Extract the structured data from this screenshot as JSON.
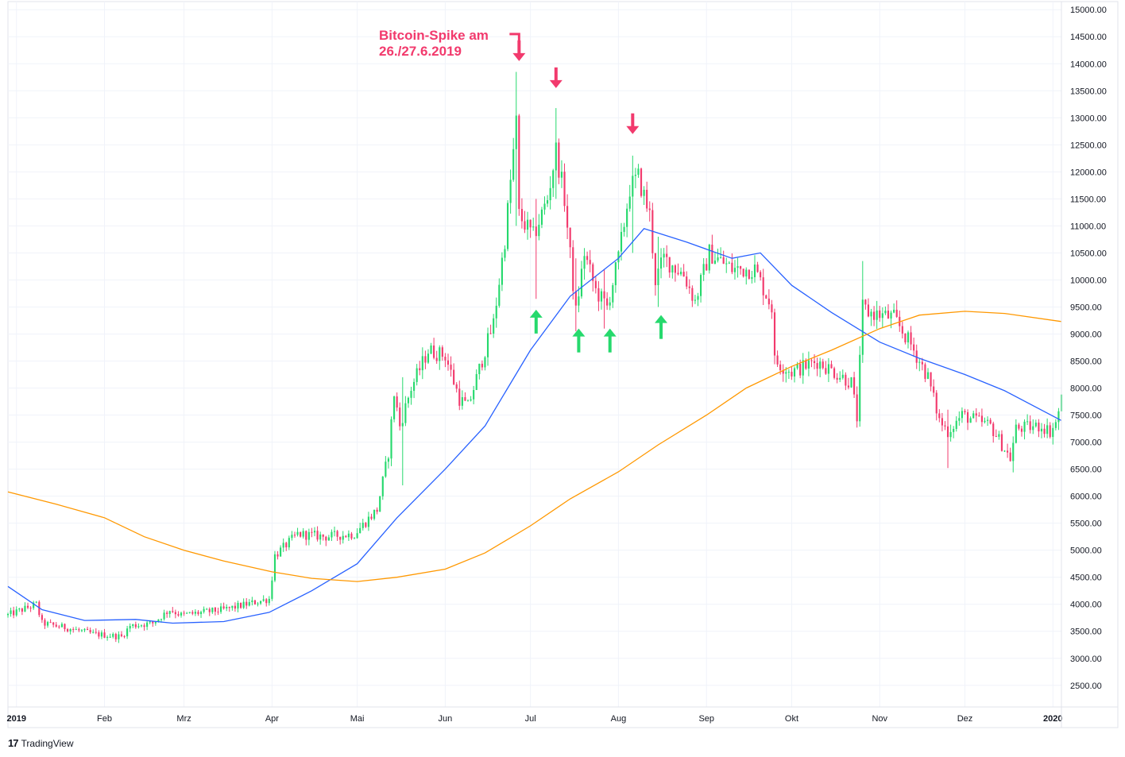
{
  "chart_data": {
    "type": "candlestick",
    "title": "",
    "annotation": [
      "Bitcoin-Spike am",
      "26./27.6.2019"
    ],
    "x_ticks": [
      {
        "label": "2019",
        "date": "2019-01-01",
        "bold": true
      },
      {
        "label": "Feb",
        "date": "2019-02-01",
        "bold": false
      },
      {
        "label": "Mrz",
        "date": "2019-03-01",
        "bold": false
      },
      {
        "label": "Apr",
        "date": "2019-04-01",
        "bold": false
      },
      {
        "label": "Mai",
        "date": "2019-05-01",
        "bold": false
      },
      {
        "label": "Jun",
        "date": "2019-06-01",
        "bold": false
      },
      {
        "label": "Jul",
        "date": "2019-07-01",
        "bold": false
      },
      {
        "label": "Aug",
        "date": "2019-08-01",
        "bold": false
      },
      {
        "label": "Sep",
        "date": "2019-09-01",
        "bold": false
      },
      {
        "label": "Okt",
        "date": "2019-10-01",
        "bold": false
      },
      {
        "label": "Nov",
        "date": "2019-11-01",
        "bold": false
      },
      {
        "label": "Dez",
        "date": "2019-12-01",
        "bold": false
      },
      {
        "label": "2020",
        "date": "2020-01-01",
        "bold": true
      }
    ],
    "y_ticks": [
      "15000.00",
      "14500.00",
      "14000.00",
      "13500.00",
      "13000.00",
      "12500.00",
      "12000.00",
      "11500.00",
      "11000.00",
      "10500.00",
      "10000.00",
      "9500.00",
      "9000.00",
      "8500.00",
      "8000.00",
      "7500.00",
      "7000.00",
      "6500.00",
      "6000.00",
      "5500.00",
      "5000.00",
      "4500.00",
      "4000.00",
      "3500.00",
      "3000.00",
      "2500.00"
    ],
    "ylim": [
      2100,
      15150
    ],
    "xlim": [
      "2018-12-29",
      "2020-01-04"
    ],
    "up_color": "#26d96d",
    "down_color": "#f23a6d",
    "close_path": [
      [
        "2018-12-29",
        3800
      ],
      [
        "2019-01-08",
        4000
      ],
      [
        "2019-01-10",
        3650
      ],
      [
        "2019-01-20",
        3550
      ],
      [
        "2019-01-28",
        3450
      ],
      [
        "2019-02-07",
        3400
      ],
      [
        "2019-02-10",
        3600
      ],
      [
        "2019-02-18",
        3650
      ],
      [
        "2019-02-24",
        3900
      ],
      [
        "2019-02-28",
        3800
      ],
      [
        "2019-03-15",
        3900
      ],
      [
        "2019-03-31",
        4100
      ],
      [
        "2019-04-02",
        4900
      ],
      [
        "2019-04-10",
        5300
      ],
      [
        "2019-04-20",
        5250
      ],
      [
        "2019-04-30",
        5300
      ],
      [
        "2019-05-08",
        5750
      ],
      [
        "2019-05-12",
        6800
      ],
      [
        "2019-05-14",
        7900
      ],
      [
        "2019-05-16",
        7300
      ],
      [
        "2019-05-20",
        8000
      ],
      [
        "2019-05-26",
        8700
      ],
      [
        "2019-06-01",
        8600
      ],
      [
        "2019-06-06",
        7800
      ],
      [
        "2019-06-09",
        7650
      ],
      [
        "2019-06-15",
        8700
      ],
      [
        "2019-06-18",
        9200
      ],
      [
        "2019-06-22",
        10750
      ],
      [
        "2019-06-26",
        12900
      ],
      [
        "2019-06-27",
        11200
      ],
      [
        "2019-07-02",
        10800
      ],
      [
        "2019-07-07",
        11500
      ],
      [
        "2019-07-10",
        12400
      ],
      [
        "2019-07-13",
        11500
      ],
      [
        "2019-07-17",
        9400
      ],
      [
        "2019-07-20",
        10500
      ],
      [
        "2019-07-24",
        9800
      ],
      [
        "2019-07-28",
        9500
      ],
      [
        "2019-08-01",
        10400
      ],
      [
        "2019-08-05",
        11700
      ],
      [
        "2019-08-08",
        11900
      ],
      [
        "2019-08-12",
        11200
      ],
      [
        "2019-08-14",
        10000
      ],
      [
        "2019-08-17",
        10400
      ],
      [
        "2019-08-24",
        10100
      ],
      [
        "2019-08-28",
        9600
      ],
      [
        "2019-09-02",
        10500
      ],
      [
        "2019-09-10",
        10200
      ],
      [
        "2019-09-18",
        10200
      ],
      [
        "2019-09-24",
        9500
      ],
      [
        "2019-09-25",
        8500
      ],
      [
        "2019-10-01",
        8300
      ],
      [
        "2019-10-10",
        8500
      ],
      [
        "2019-10-22",
        8100
      ],
      [
        "2019-10-24",
        7450
      ],
      [
        "2019-10-26",
        9500
      ],
      [
        "2019-10-28",
        9400
      ],
      [
        "2019-11-06",
        9300
      ],
      [
        "2019-11-12",
        8800
      ],
      [
        "2019-11-18",
        8200
      ],
      [
        "2019-11-22",
        7400
      ],
      [
        "2019-11-25",
        7200
      ],
      [
        "2019-11-30",
        7500
      ],
      [
        "2019-12-10",
        7300
      ],
      [
        "2019-12-17",
        6700
      ],
      [
        "2019-12-19",
        7250
      ],
      [
        "2019-12-28",
        7300
      ],
      [
        "2019-12-31",
        7200
      ],
      [
        "2020-01-02",
        7350
      ],
      [
        "2020-01-04",
        7800
      ]
    ],
    "spikes": [
      {
        "date": "2019-06-26",
        "high": 13850,
        "low": 11000
      },
      {
        "date": "2019-07-03",
        "high": 11500,
        "low": 9650
      },
      {
        "date": "2019-07-10",
        "high": 13180,
        "low": 11500
      },
      {
        "date": "2019-07-17",
        "high": 10400,
        "low": 9050
      },
      {
        "date": "2019-07-27",
        "high": 10200,
        "low": 9100
      },
      {
        "date": "2019-08-06",
        "high": 12300,
        "low": 10500
      },
      {
        "date": "2019-08-15",
        "high": 10800,
        "low": 9500
      },
      {
        "date": "2019-10-26",
        "high": 10350,
        "low": 8900
      },
      {
        "date": "2019-11-25",
        "high": 7600,
        "low": 6520
      },
      {
        "date": "2019-12-18",
        "high": 7100,
        "low": 6440
      },
      {
        "date": "2019-05-17",
        "high": 8200,
        "low": 6200
      }
    ],
    "series": [
      {
        "color": "#2962ff",
        "points": [
          [
            "2018-12-29",
            4330
          ],
          [
            "2019-01-10",
            3900
          ],
          [
            "2019-01-25",
            3700
          ],
          [
            "2019-02-12",
            3720
          ],
          [
            "2019-02-25",
            3650
          ],
          [
            "2019-03-15",
            3680
          ],
          [
            "2019-03-31",
            3850
          ],
          [
            "2019-04-15",
            4250
          ],
          [
            "2019-05-01",
            4750
          ],
          [
            "2019-05-15",
            5600
          ],
          [
            "2019-06-01",
            6500
          ],
          [
            "2019-06-15",
            7300
          ],
          [
            "2019-07-01",
            8700
          ],
          [
            "2019-07-15",
            9700
          ],
          [
            "2019-08-01",
            10400
          ],
          [
            "2019-08-10",
            10950
          ],
          [
            "2019-08-25",
            10700
          ],
          [
            "2019-09-10",
            10400
          ],
          [
            "2019-09-20",
            10500
          ],
          [
            "2019-10-01",
            9900
          ],
          [
            "2019-10-15",
            9400
          ],
          [
            "2019-11-01",
            8850
          ],
          [
            "2019-11-15",
            8550
          ],
          [
            "2019-12-01",
            8250
          ],
          [
            "2019-12-15",
            7950
          ],
          [
            "2020-01-04",
            7400
          ]
        ]
      },
      {
        "color": "#ff9800",
        "points": [
          [
            "2018-12-29",
            6080
          ],
          [
            "2019-01-15",
            5850
          ],
          [
            "2019-02-01",
            5600
          ],
          [
            "2019-02-15",
            5250
          ],
          [
            "2019-03-01",
            5000
          ],
          [
            "2019-03-15",
            4800
          ],
          [
            "2019-04-01",
            4600
          ],
          [
            "2019-04-15",
            4480
          ],
          [
            "2019-05-01",
            4420
          ],
          [
            "2019-05-15",
            4500
          ],
          [
            "2019-06-01",
            4650
          ],
          [
            "2019-06-15",
            4950
          ],
          [
            "2019-07-01",
            5450
          ],
          [
            "2019-07-15",
            5950
          ],
          [
            "2019-08-01",
            6450
          ],
          [
            "2019-08-15",
            6950
          ],
          [
            "2019-09-01",
            7500
          ],
          [
            "2019-09-15",
            8000
          ],
          [
            "2019-10-01",
            8400
          ],
          [
            "2019-10-15",
            8700
          ],
          [
            "2019-11-01",
            9100
          ],
          [
            "2019-11-15",
            9350
          ],
          [
            "2019-12-01",
            9420
          ],
          [
            "2019-12-15",
            9380
          ],
          [
            "2020-01-04",
            9230
          ]
        ]
      }
    ],
    "arrows": [
      {
        "dir": "down",
        "color": "#f23a6d",
        "date": "2019-06-27",
        "value": 14050
      },
      {
        "dir": "down",
        "color": "#f23a6d",
        "date": "2019-07-10",
        "value": 13550
      },
      {
        "dir": "down",
        "color": "#f23a6d",
        "date": "2019-08-06",
        "value": 12700
      },
      {
        "dir": "up",
        "color": "#26d96d",
        "date": "2019-07-03",
        "value": 9450
      },
      {
        "dir": "up",
        "color": "#26d96d",
        "date": "2019-07-18",
        "value": 9100
      },
      {
        "dir": "up",
        "color": "#26d96d",
        "date": "2019-07-29",
        "value": 9100
      },
      {
        "dir": "up",
        "color": "#26d96d",
        "date": "2019-08-16",
        "value": 9350
      }
    ]
  },
  "brand": {
    "logo": "17",
    "name": "TradingView"
  }
}
